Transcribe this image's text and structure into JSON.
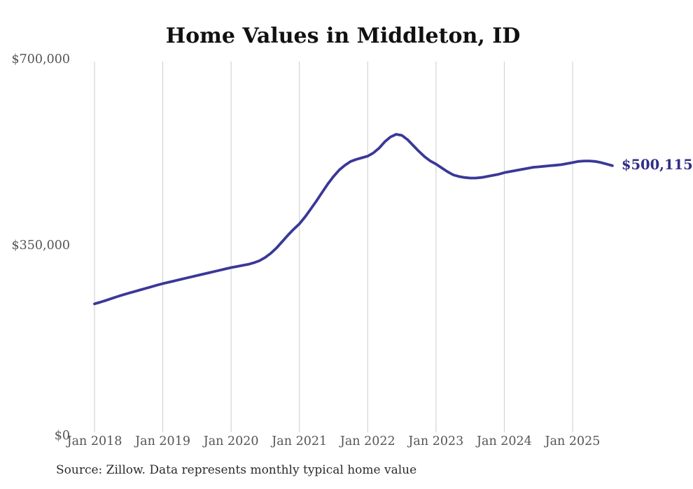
{
  "page": {
    "title": "Home Values in Middleton, ID",
    "source_note": "Source: Zillow. Data represents monthly typical home value"
  },
  "colors": {
    "background": "#ffffff",
    "title_text": "#111111",
    "axis_label_text": "#555555",
    "gridline": "#cccccc",
    "line": "#3a3896",
    "end_label_text": "#2f2d87",
    "source_text": "#2b2b2b"
  },
  "chart_data": {
    "type": "line",
    "title": "Home Values in Middleton, ID",
    "xlabel": "",
    "ylabel": "",
    "legend": "none",
    "grid": "vertical-only",
    "frequency": "monthly",
    "x_start": "Jan 2018",
    "x_end": "Aug 2025",
    "ylim": [
      0,
      700000
    ],
    "y_ticks": [
      {
        "label": "$0",
        "value": 0
      },
      {
        "label": "$350,000",
        "value": 350000
      },
      {
        "label": "$700,000",
        "value": 700000
      }
    ],
    "x_tick_labels": [
      "Jan 2018",
      "Jan 2019",
      "Jan 2020",
      "Jan 2021",
      "Jan 2022",
      "Jan 2023",
      "Jan 2024",
      "Jan 2025"
    ],
    "x_tick_month_indices": [
      0,
      12,
      24,
      36,
      48,
      60,
      72,
      84
    ],
    "last_value_label": "$500,115",
    "series_name": "Typical home value",
    "values": [
      241000,
      244000,
      247500,
      251000,
      254500,
      258000,
      261000,
      264000,
      267000,
      270000,
      273000,
      276000,
      279000,
      281500,
      284000,
      286500,
      289000,
      291500,
      294000,
      296500,
      299000,
      301500,
      304000,
      306500,
      309000,
      311000,
      313000,
      315000,
      318000,
      322000,
      328000,
      336000,
      346000,
      358000,
      370000,
      381000,
      391000,
      404000,
      419000,
      434000,
      450000,
      466000,
      480000,
      492000,
      501000,
      508000,
      512000,
      515000,
      518000,
      524000,
      533000,
      545000,
      554000,
      559000,
      557000,
      549000,
      538000,
      527000,
      517000,
      509000,
      503000,
      496000,
      489000,
      483000,
      480000,
      478000,
      477000,
      477000,
      478000,
      480000,
      482000,
      484000,
      487000,
      489000,
      491000,
      493000,
      495000,
      497000,
      498000,
      499000,
      500000,
      501000,
      502000,
      504000,
      506000,
      508000,
      509000,
      509000,
      508000,
      506000,
      503000,
      500115
    ]
  }
}
